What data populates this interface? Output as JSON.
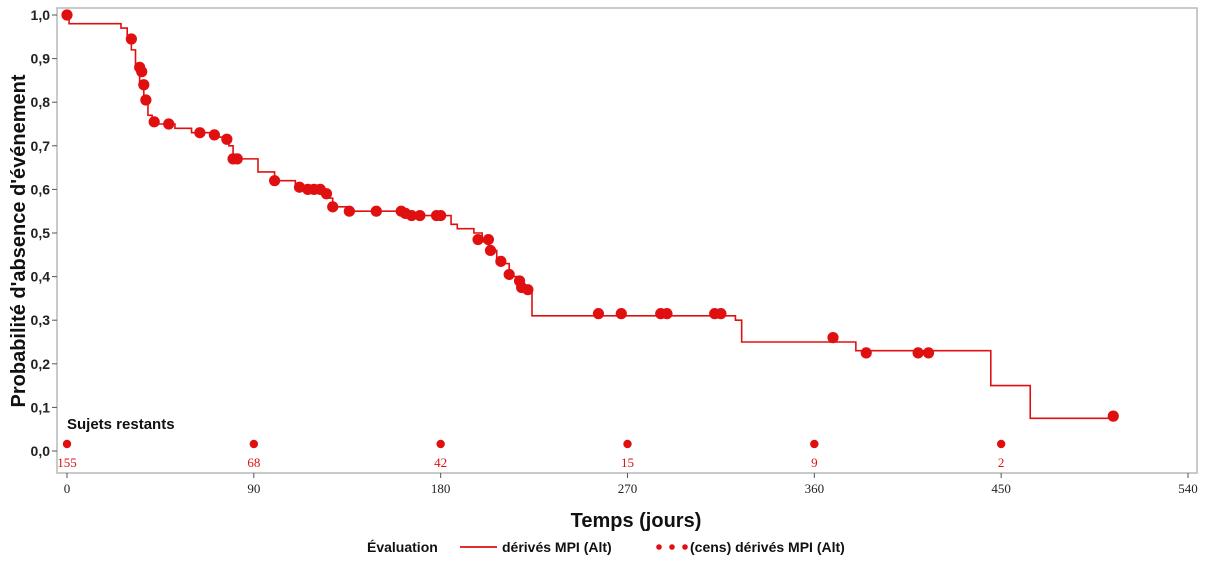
{
  "chart_data": {
    "type": "line",
    "subtype": "kaplan-meier",
    "xlabel": "Temps (jours)",
    "ylabel": "Probabilité d'absence d'événement",
    "xlim": [
      0,
      540
    ],
    "ylim": [
      0,
      1.0
    ],
    "xticks": [
      "0",
      "90",
      "180",
      "270",
      "360",
      "450",
      "540"
    ],
    "yticks": [
      "0,0",
      "0,1",
      "0,2",
      "0,3",
      "0,4",
      "0,5",
      "0,6",
      "0,7",
      "0,8",
      "0,9",
      "1,0"
    ],
    "series_color": "#e01010",
    "survival_steps": [
      [
        0,
        1.0
      ],
      [
        1,
        0.98
      ],
      [
        26,
        0.97
      ],
      [
        29,
        0.95
      ],
      [
        31,
        0.92
      ],
      [
        33,
        0.88
      ],
      [
        35,
        0.84
      ],
      [
        37,
        0.8
      ],
      [
        39,
        0.77
      ],
      [
        41,
        0.75
      ],
      [
        52,
        0.74
      ],
      [
        60,
        0.73
      ],
      [
        73,
        0.72
      ],
      [
        78,
        0.7
      ],
      [
        80,
        0.67
      ],
      [
        92,
        0.64
      ],
      [
        100,
        0.62
      ],
      [
        110,
        0.6
      ],
      [
        124,
        0.58
      ],
      [
        128,
        0.56
      ],
      [
        135,
        0.55
      ],
      [
        165,
        0.54
      ],
      [
        185,
        0.52
      ],
      [
        188,
        0.51
      ],
      [
        196,
        0.5
      ],
      [
        200,
        0.48
      ],
      [
        203,
        0.46
      ],
      [
        207,
        0.43
      ],
      [
        213,
        0.4
      ],
      [
        217,
        0.37
      ],
      [
        224,
        0.31
      ],
      [
        322,
        0.3
      ],
      [
        325,
        0.25
      ],
      [
        380,
        0.23
      ],
      [
        445,
        0.15
      ],
      [
        464,
        0.075
      ],
      [
        504,
        0.075
      ]
    ],
    "censored_points": [
      [
        0,
        1.0
      ],
      [
        31,
        0.945
      ],
      [
        35,
        0.88
      ],
      [
        36,
        0.87
      ],
      [
        37,
        0.84
      ],
      [
        38,
        0.805
      ],
      [
        42,
        0.755
      ],
      [
        49,
        0.75
      ],
      [
        64,
        0.73
      ],
      [
        71,
        0.725
      ],
      [
        77,
        0.715
      ],
      [
        80,
        0.67
      ],
      [
        82,
        0.67
      ],
      [
        100,
        0.62
      ],
      [
        112,
        0.605
      ],
      [
        116,
        0.6
      ],
      [
        119,
        0.6
      ],
      [
        122,
        0.6
      ],
      [
        125,
        0.59
      ],
      [
        128,
        0.56
      ],
      [
        136,
        0.55
      ],
      [
        149,
        0.55
      ],
      [
        161,
        0.55
      ],
      [
        163,
        0.545
      ],
      [
        166,
        0.54
      ],
      [
        170,
        0.54
      ],
      [
        178,
        0.54
      ],
      [
        180,
        0.54
      ],
      [
        198,
        0.485
      ],
      [
        203,
        0.485
      ],
      [
        204,
        0.46
      ],
      [
        209,
        0.435
      ],
      [
        213,
        0.405
      ],
      [
        218,
        0.39
      ],
      [
        219,
        0.375
      ],
      [
        222,
        0.37
      ],
      [
        256,
        0.315
      ],
      [
        267,
        0.315
      ],
      [
        286,
        0.315
      ],
      [
        289,
        0.315
      ],
      [
        312,
        0.315
      ],
      [
        315,
        0.315
      ],
      [
        369,
        0.26
      ],
      [
        385,
        0.225
      ],
      [
        410,
        0.225
      ],
      [
        415,
        0.225
      ],
      [
        504,
        0.08
      ]
    ],
    "at_risk": {
      "title": "Sujets restants",
      "times": [
        0,
        90,
        180,
        270,
        360,
        450
      ],
      "counts": [
        "155",
        "68",
        "42",
        "15",
        "9",
        "2"
      ]
    },
    "legend": {
      "title": "Évaluation",
      "line_label": "dérivés MPI (Alt)",
      "marker_label": "(cens) dérivés MPI (Alt)",
      "placement": "bottom-center"
    }
  }
}
